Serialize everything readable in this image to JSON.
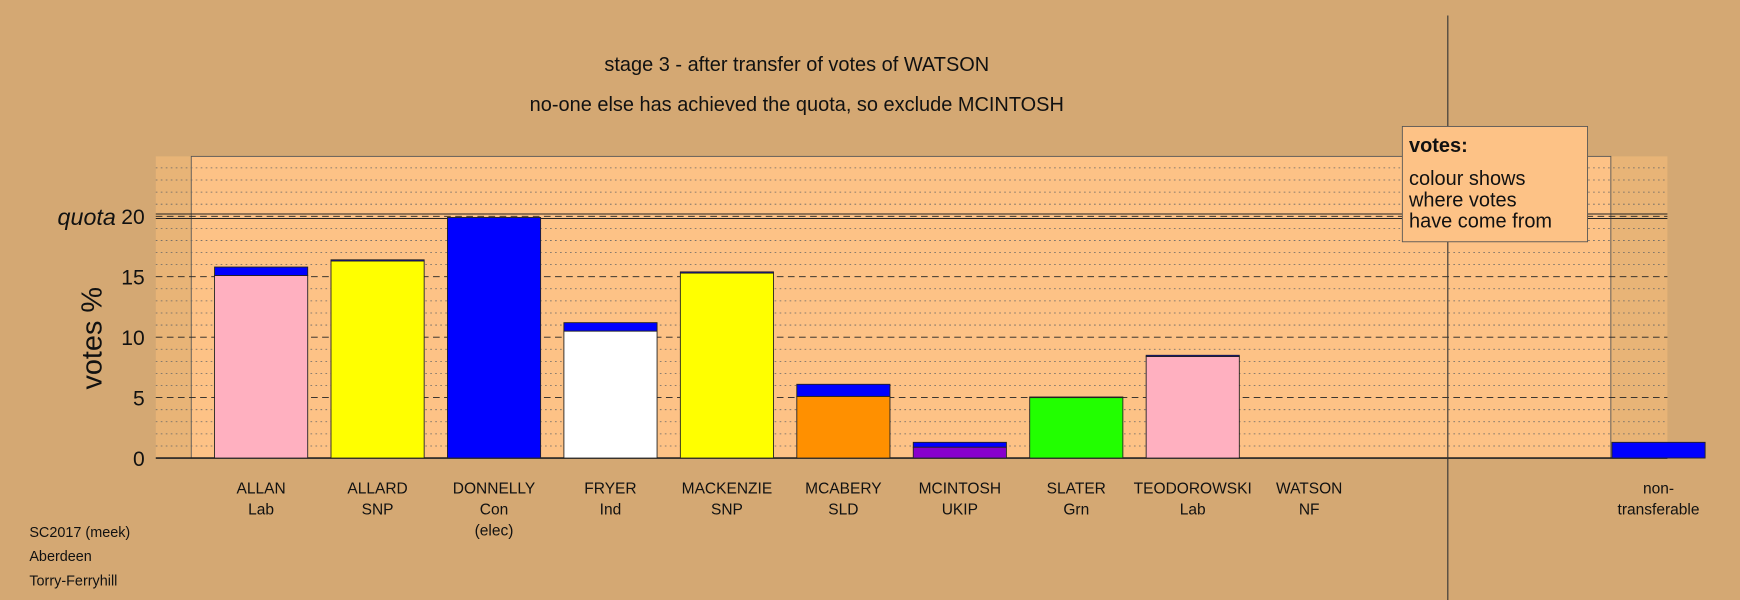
{
  "chart_data": {
    "type": "bar",
    "stacked": true,
    "title": "stage 3 - after transfer of votes of WATSON",
    "subtitle": "no-one else has achieved the quota, so exclude MCINTOSH",
    "y_label": "votes %",
    "categories": [
      [
        "ALLAN",
        "Lab"
      ],
      [
        "ALLARD",
        "SNP"
      ],
      [
        "DONNELLY",
        "Con",
        "(elec)"
      ],
      [
        "FRYER",
        "Ind"
      ],
      [
        "MACKENZIE",
        "SNP"
      ],
      [
        "MCABERY",
        "SLD"
      ],
      [
        "MCINTOSH",
        "UKIP"
      ],
      [
        "SLATER",
        "Grn"
      ],
      [
        "TEODOROWSKI",
        "Lab"
      ],
      [
        "WATSON",
        "NF"
      ],
      [
        "non-",
        "transferable"
      ]
    ],
    "series": [
      {
        "values": [
          15.1,
          16.3,
          19.9,
          10.5,
          15.3,
          5.1,
          0.9,
          5.0,
          8.4,
          0,
          0
        ],
        "colors": [
          "#ffb0c0",
          "#ffff00",
          "#0000ff",
          "#ffffff",
          "#ffff00",
          "#ff9000",
          "#8800cc",
          "#22ff00",
          "#ffb0c0",
          "#000000",
          "#0000ff"
        ]
      },
      {
        "values": [
          0.7,
          0.1,
          0,
          0.7,
          0.1,
          1.0,
          0.4,
          0.05,
          0.1,
          0,
          1.3
        ],
        "color": "#0000ff"
      }
    ],
    "ylim": [
      0,
      25
    ],
    "yticks": [
      0,
      5,
      10,
      15,
      20
    ],
    "minor_grid_step": 1,
    "grid": true,
    "quota": {
      "label": "quota",
      "value": 20
    },
    "legend_box": {
      "title": "votes:",
      "lines": [
        "colour shows",
        "where votes",
        "have come from"
      ]
    },
    "footer": [
      "SC2017 (meek)",
      "Aberdeen",
      "Torry-Ferryhill"
    ]
  }
}
